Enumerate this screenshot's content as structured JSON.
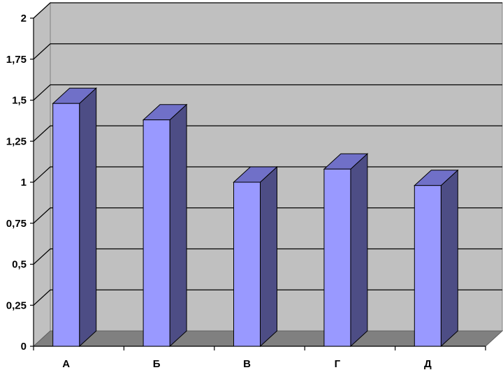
{
  "chart_data": {
    "type": "bar",
    "categories": [
      "А",
      "Б",
      "В",
      "Г",
      "Д"
    ],
    "values": [
      1.48,
      1.38,
      1.0,
      1.08,
      0.98
    ],
    "ylim": [
      0,
      2
    ],
    "yticks": [
      0,
      0.25,
      0.5,
      0.75,
      1,
      1.25,
      1.5,
      1.75,
      2
    ],
    "ytick_labels": [
      "0",
      "0,25",
      "0,5",
      "0,75",
      "1",
      "1,25",
      "1,5",
      "1,75",
      "2"
    ],
    "grid": true,
    "colors": {
      "bar_front": "#9999ff",
      "bar_side": "#4d4d85",
      "bar_top": "#7070c8",
      "wall": "#c0c0c0",
      "floor": "#808080"
    }
  }
}
